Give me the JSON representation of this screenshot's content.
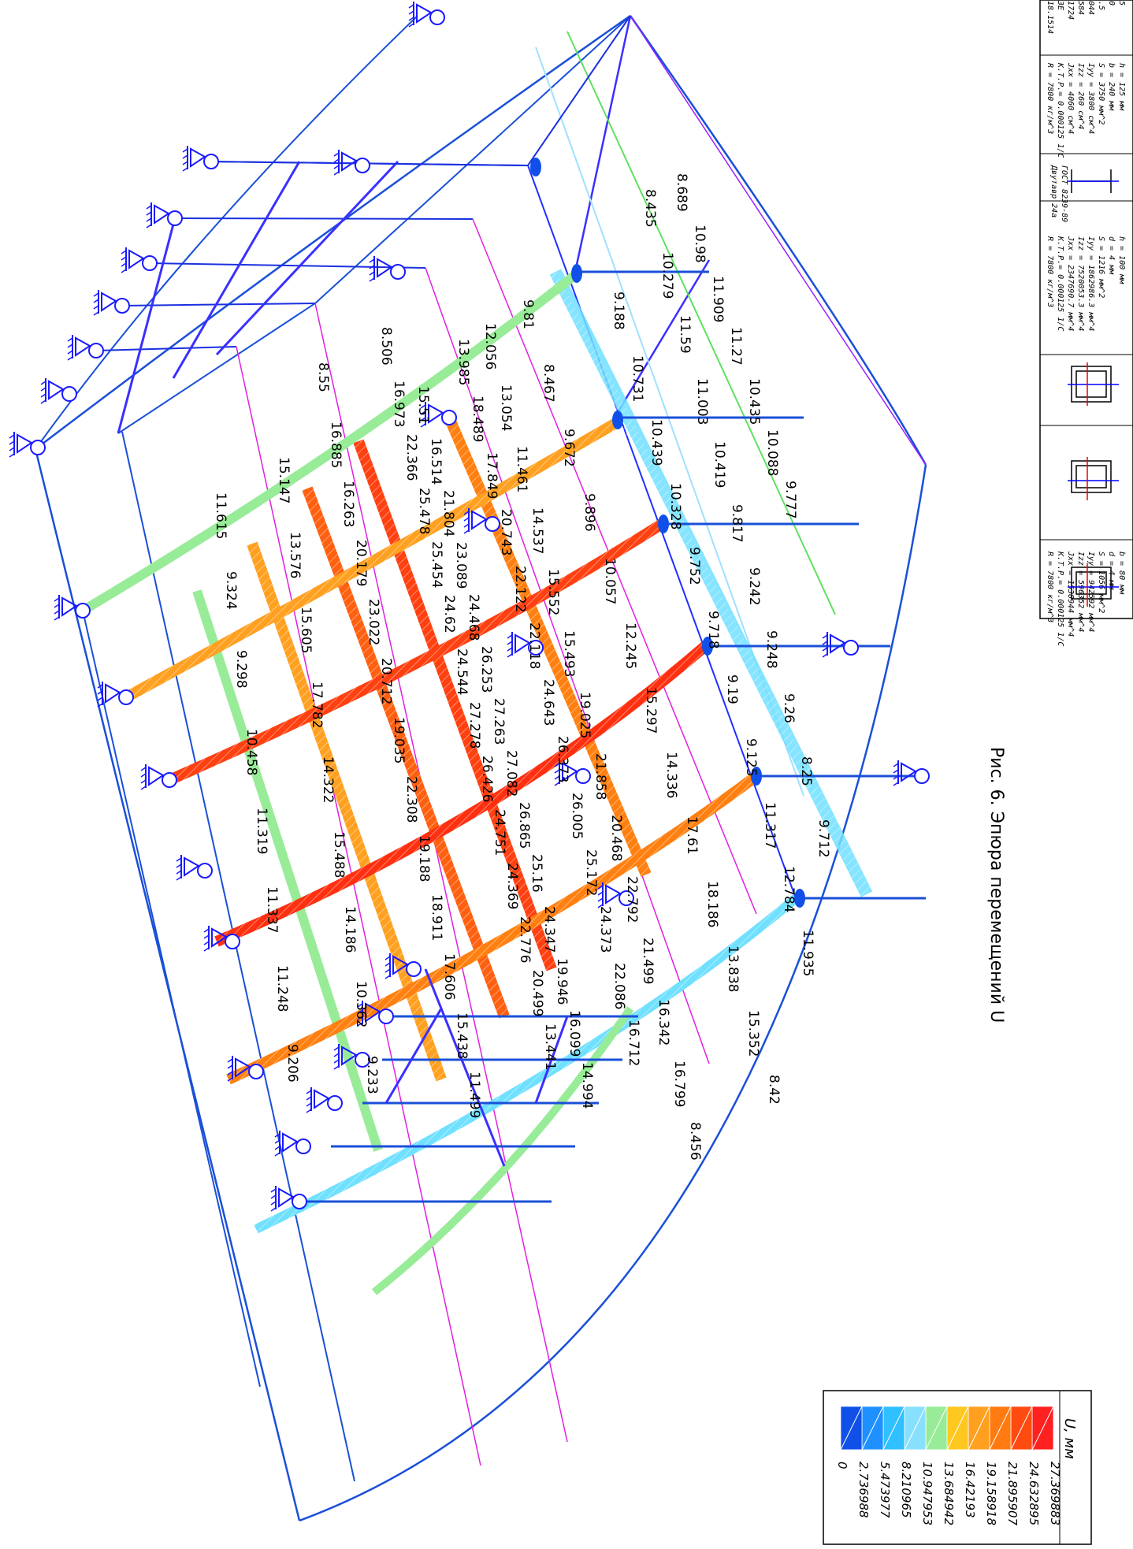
{
  "caption": "Рис. 6. Эпюра перемещений U",
  "legend": {
    "title": "U, мм",
    "values": [
      "27.369883",
      "24.632895",
      "21.895907",
      "19.158918",
      "16.42193",
      "13.684942",
      "10.947953",
      "8.210965",
      "5.473977",
      "2.736988",
      "0"
    ],
    "colors": [
      "#ff2020",
      "#ff4a10",
      "#ff7a10",
      "#ffa020",
      "#ffc820",
      "#98ec98",
      "#88e0ff",
      "#30c0ff",
      "#1f90ff",
      "#1050e8"
    ]
  },
  "sections": [
    {
      "lines": [
        "R =   7800 кг/м^3",
        "К.Т.Р.= 0.000125  1/С",
        "Jxx = 1538944 мм^4",
        "Izz = 596352 мм^4",
        "Iyy = 942592 мм^4",
        "S =   1056 мм^2",
        "d =   4 мм",
        "b =   80 мм"
      ]
    },
    {
      "lines": [
        "R =   7800 кг/м^3",
        "К.Т.Р.= 0.000125  1/С",
        "Jxx = 2347690.7 мм^4",
        "Izz = 7520053.3 мм^4",
        "Iyy = 1862986.3 мм^4",
        "S =   1216 мм^2",
        "d =   4 мм",
        "h =   100 мм"
      ]
    },
    {
      "lines": [
        "Двутавр 24а",
        "ГОСТ 8239-89"
      ]
    },
    {
      "lines": [
        "R =   7800 кг/м^3",
        "К.Т.Р.= 0.000125  1/С",
        "Jxx = 4060 см^4",
        "Izz = 260 см^4",
        "Iyy = 3800 см^4",
        "S =   3750 мм^2",
        "b =   240 мм",
        "h =   125 мм"
      ]
    },
    {
      "lines": [
        "118.1514",
        "13E",
        "11724",
        "1584",
        "2044",
        "1.5",
        "30",
        "15"
      ]
    }
  ],
  "beams": [
    {
      "id": "A",
      "labels": [
        "8.689",
        "10.98",
        "11.909",
        "11.27",
        "10.435",
        "10.088",
        "9.777"
      ]
    },
    {
      "id": "B",
      "labels": [
        "8.435",
        "10.279",
        "11.59",
        "11.003",
        "10.419",
        "9.817",
        "9.242",
        "9.248",
        "9.26",
        "8.25",
        "9.712"
      ]
    },
    {
      "id": "C",
      "labels": [
        "9.188",
        "10.731",
        "10.439",
        "10.328",
        "9.752",
        "9.718",
        "9.19",
        "9.125",
        "11.317",
        "12.784",
        "11.935"
      ]
    },
    {
      "id": "D",
      "labels": [
        "9.81",
        "8.467",
        "9.672",
        "9.896",
        "10.057",
        "12.245",
        "15.297",
        "14.336",
        "17.61",
        "18.186",
        "13.838",
        "15.352",
        "8.42"
      ]
    },
    {
      "id": "E",
      "labels": [
        "12.056",
        "13.054",
        "11.461",
        "14.537",
        "15.552",
        "15.493",
        "19.025",
        "21.858",
        "20.468",
        "22.792",
        "21.499",
        "16.342",
        "16.799",
        "8.456"
      ]
    },
    {
      "id": "F",
      "labels": [
        "13.985",
        "18.489",
        "17.849",
        "20.743",
        "22.122",
        "22.118",
        "24.643",
        "26.373",
        "26.005",
        "25.172",
        "24.373",
        "22.086",
        "16.712"
      ]
    },
    {
      "id": "G",
      "labels": [
        "15.51",
        "16.514",
        "21.804",
        "23.089",
        "24.468",
        "26.253",
        "27.263",
        "27.082",
        "26.865",
        "25.16",
        "24.347",
        "19.946",
        "16.099",
        "14.994"
      ]
    },
    {
      "id": "H",
      "labels": [
        "8.506",
        "16.973",
        "22.366",
        "25.478",
        "25.454",
        "24.62",
        "24.544",
        "27.278",
        "26.426",
        "24.751",
        "24.369",
        "22.776",
        "20.499",
        "13.441"
      ]
    },
    {
      "id": "I",
      "labels": [
        "8.55",
        "16.885",
        "16.263",
        "20.179",
        "23.022",
        "20.712",
        "19.035",
        "22.308",
        "19.188",
        "18.911",
        "17.606",
        "15.438",
        "11.499"
      ]
    },
    {
      "id": "J",
      "labels": [
        "15.147",
        "13.576",
        "15.605",
        "17.782",
        "14.322",
        "15.488",
        "14.186",
        "10.362",
        "9.233"
      ]
    },
    {
      "id": "K",
      "labels": [
        "11.615",
        "9.324",
        "9.298",
        "10.458",
        "11.319",
        "11.337",
        "11.248",
        "9.206"
      ]
    }
  ]
}
